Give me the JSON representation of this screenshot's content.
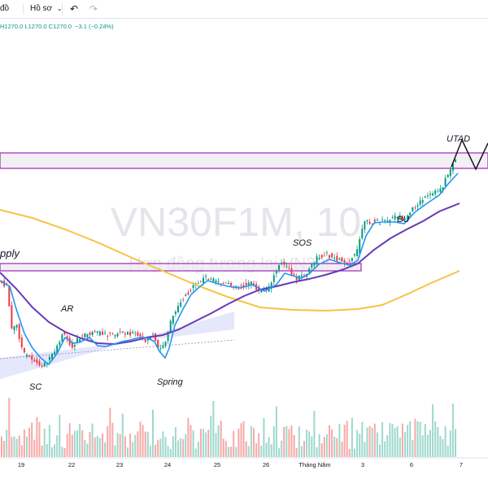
{
  "toolbar": {
    "timeframe_label": "đồ",
    "profile_label": "Hồ sơ",
    "undo_icon": "undo-icon"
  },
  "legend": {
    "high": "H1270.0",
    "low": "L1270.0",
    "close": "C1270.0",
    "change": "−3.1 (−0.24%)"
  },
  "watermark": {
    "symbol": "VN30F1M, 10",
    "description": "Hợp đồng tương lai VN30F1M"
  },
  "annotations": {
    "supply": "pply",
    "ar": "AR",
    "sc": "SC",
    "spring": "Spring",
    "sos": "SOS",
    "bu": "BU",
    "utad": "UTAD"
  },
  "x_axis": {
    "ticks": [
      "19",
      "22",
      "23",
      "24",
      "25",
      "26",
      "Tháng Năm",
      "3",
      "6",
      "7"
    ]
  },
  "colors": {
    "up": "#089981",
    "down": "#f23645",
    "ma_fast": "#2196f3",
    "ma_mid": "#673ab7",
    "ma_slow": "#f6c343",
    "zone_border": "#9c27b0",
    "channel_fill": "#c5cdf7",
    "watermark": "#e3e5ea"
  },
  "chart_data": {
    "type": "candlestick",
    "title": "VN30F1M, 10",
    "interval": "10",
    "x_categories": [
      "19",
      "22",
      "23",
      "24",
      "25",
      "26",
      "Tháng Năm",
      "3",
      "6",
      "7"
    ],
    "series": [
      {
        "name": "",
        "kind": "candles"
      },
      {
        "name": "",
        "kind": "line",
        "color": "#2196f3"
      },
      {
        "name": "",
        "kind": "line",
        "color": "#673ab7"
      },
      {
        "name": "",
        "kind": "line",
        "color": "#f6c343"
      },
      {
        "name": "",
        "kind": "volume"
      }
    ],
    "last_close": 1270.0,
    "last_change": -3.1,
    "last_change_pct": -0.24,
    "annotations": [
      "pply",
      "AR",
      "SC",
      "Spring",
      "SOS",
      "BU",
      "UTAD"
    ],
    "grid": false
  }
}
